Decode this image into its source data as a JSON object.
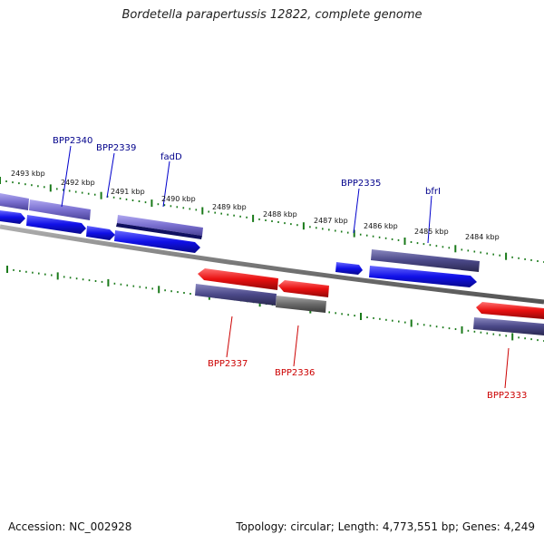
{
  "title": "Bordetella parapertussis 12822, complete genome",
  "footer": {
    "accession": "Accession: NC_002928",
    "topology": "Topology: circular; Length: 4,773,551 bp; Genes: 4,249"
  },
  "colors": {
    "forward_label": "#00008b",
    "reverse_label": "#cc0000",
    "tick": "#1a7a1a",
    "backbone": "#777777",
    "gene_blue": "#1010e8",
    "gene_red": "#e81010",
    "gene_slate": "#4a4888",
    "gene_lavender": "#7a70d0",
    "gene_navy": "#101060",
    "gene_gray": "#6a6a6a"
  },
  "ticks": [
    {
      "label": "2493 kbp"
    },
    {
      "label": "2492 kbp"
    },
    {
      "label": "2491 kbp"
    },
    {
      "label": "2490 kbp"
    },
    {
      "label": "2489 kbp"
    },
    {
      "label": "2488 kbp"
    },
    {
      "label": "2487 kbp"
    },
    {
      "label": "2486 kbp"
    },
    {
      "label": "2485 kbp"
    },
    {
      "label": "2484 kbp"
    }
  ],
  "gene_labels": [
    {
      "name": "BPP2340",
      "strand": "forward"
    },
    {
      "name": "BPP2339",
      "strand": "forward"
    },
    {
      "name": "fadD",
      "strand": "forward"
    },
    {
      "name": "BPP2335",
      "strand": "forward"
    },
    {
      "name": "bfrI",
      "strand": "forward"
    },
    {
      "name": "BPP2337",
      "strand": "reverse"
    },
    {
      "name": "BPP2336",
      "strand": "reverse"
    },
    {
      "name": "BPP2333",
      "strand": "reverse"
    }
  ]
}
